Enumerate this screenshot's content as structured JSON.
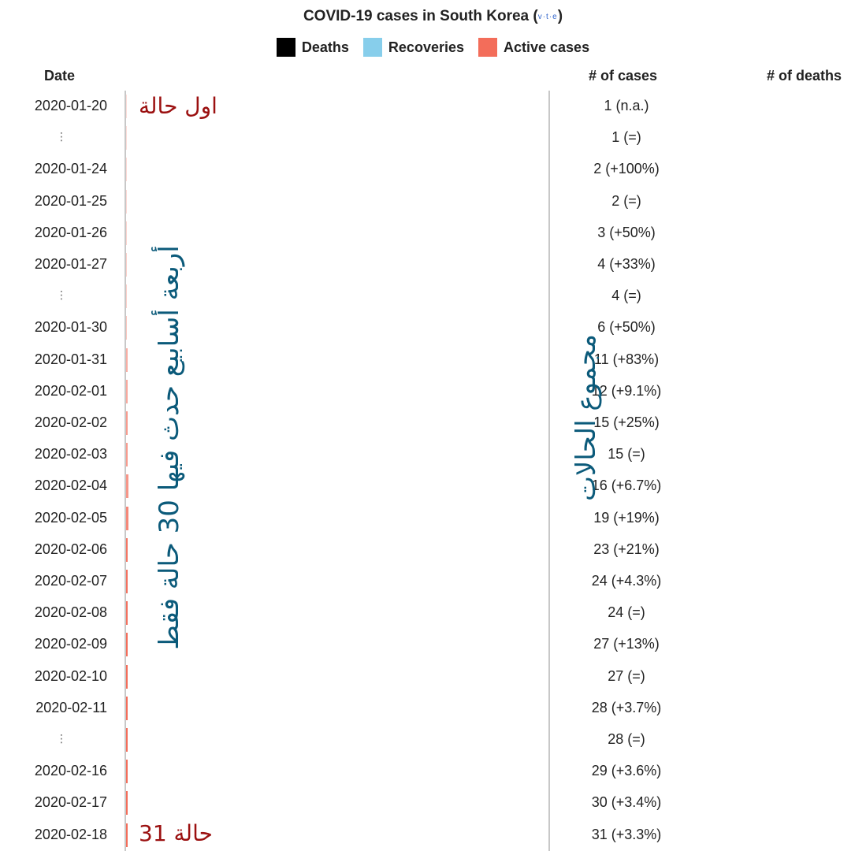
{
  "chart_data": {
    "type": "bar",
    "title": "COVID-19 cases in South Korea",
    "vte_label": "v·t·e",
    "legend": [
      {
        "name": "Deaths",
        "color": "#000000"
      },
      {
        "name": "Recoveries",
        "color": "#87ceeb"
      },
      {
        "name": "Active cases",
        "color": "#f36d5a"
      }
    ],
    "headers": {
      "date": "Date",
      "cases": "# of cases",
      "deaths": "# of deaths"
    },
    "rows": [
      {
        "date": "2020-01-20",
        "cases": 1,
        "label": "1 (n.a.)",
        "active": 1
      },
      {
        "date": "⋮",
        "cases": 1,
        "label": "1 (=)",
        "active": 1
      },
      {
        "date": "2020-01-24",
        "cases": 2,
        "label": "2 (+100%)",
        "active": 2
      },
      {
        "date": "2020-01-25",
        "cases": 2,
        "label": "2 (=)",
        "active": 2
      },
      {
        "date": "2020-01-26",
        "cases": 3,
        "label": "3 (+50%)",
        "active": 3
      },
      {
        "date": "2020-01-27",
        "cases": 4,
        "label": "4 (+33%)",
        "active": 4
      },
      {
        "date": "⋮",
        "cases": 4,
        "label": "4 (=)",
        "active": 4
      },
      {
        "date": "2020-01-30",
        "cases": 6,
        "label": "6 (+50%)",
        "active": 6
      },
      {
        "date": "2020-01-31",
        "cases": 11,
        "label": "11 (+83%)",
        "active": 11
      },
      {
        "date": "2020-02-01",
        "cases": 12,
        "label": "12 (+9.1%)",
        "active": 12
      },
      {
        "date": "2020-02-02",
        "cases": 15,
        "label": "15 (+25%)",
        "active": 15
      },
      {
        "date": "2020-02-03",
        "cases": 15,
        "label": "15 (=)",
        "active": 15
      },
      {
        "date": "2020-02-04",
        "cases": 16,
        "label": "16 (+6.7%)",
        "active": 16
      },
      {
        "date": "2020-02-05",
        "cases": 19,
        "label": "19 (+19%)",
        "active": 19
      },
      {
        "date": "2020-02-06",
        "cases": 23,
        "label": "23 (+21%)",
        "active": 23
      },
      {
        "date": "2020-02-07",
        "cases": 24,
        "label": "24 (+4.3%)",
        "active": 24
      },
      {
        "date": "2020-02-08",
        "cases": 24,
        "label": "24 (=)",
        "active": 24
      },
      {
        "date": "2020-02-09",
        "cases": 27,
        "label": "27 (+13%)",
        "active": 27
      },
      {
        "date": "2020-02-10",
        "cases": 27,
        "label": "27 (=)",
        "active": 27
      },
      {
        "date": "2020-02-11",
        "cases": 28,
        "label": "28 (+3.7%)",
        "active": 28
      },
      {
        "date": "⋮",
        "cases": 28,
        "label": "28 (=)",
        "active": 28
      },
      {
        "date": "2020-02-16",
        "cases": 29,
        "label": "29 (+3.6%)",
        "active": 29
      },
      {
        "date": "2020-02-17",
        "cases": 30,
        "label": "30 (+3.4%)",
        "active": 30
      },
      {
        "date": "2020-02-18",
        "cases": 31,
        "label": "31 (+3.3%)",
        "active": 31
      }
    ]
  },
  "annotations": {
    "first_case": "اول حالة",
    "four_weeks": "أربعة أسابيع حدث فيها 30 حالة فقط",
    "total_cases": "مجموع الحالات",
    "case_31": "حالة 31"
  }
}
